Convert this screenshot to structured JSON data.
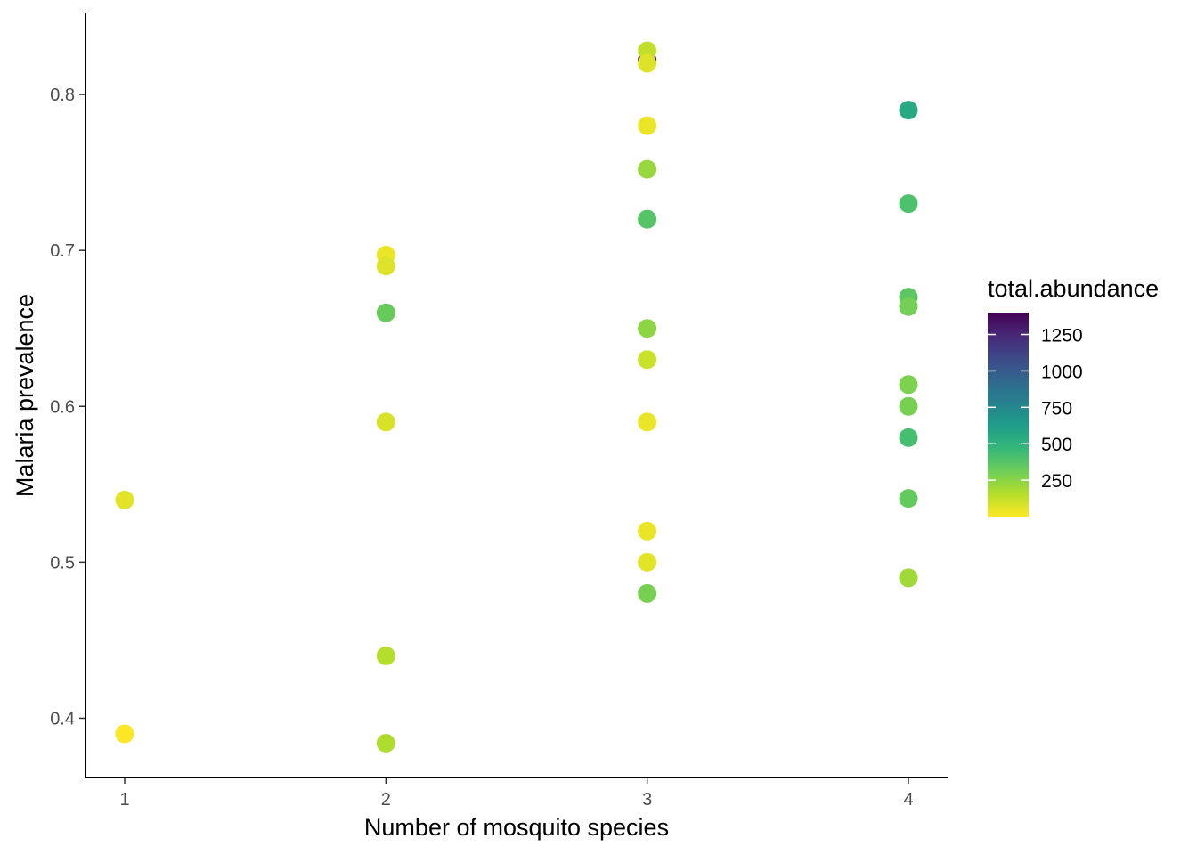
{
  "chart_data": {
    "type": "scatter",
    "xlabel": "Number of mosquito species",
    "ylabel": "Malaria prevalence",
    "xlim": [
      0.85,
      4.15
    ],
    "ylim": [
      0.362,
      0.852
    ],
    "x_ticks": [
      1,
      2,
      3,
      4
    ],
    "x_tick_labels": [
      "1",
      "2",
      "3",
      "4"
    ],
    "y_ticks": [
      0.4,
      0.5,
      0.6,
      0.7,
      0.8
    ],
    "y_tick_labels": [
      "0.4",
      "0.5",
      "0.6",
      "0.7",
      "0.8"
    ],
    "grid": false,
    "legend": {
      "title": "total.abundance",
      "placement": "right",
      "type": "colorbar",
      "range": [
        0,
        1400
      ],
      "breaks": [
        250,
        500,
        750,
        1000,
        1250
      ],
      "break_labels": [
        "250",
        "500",
        "750",
        "1000",
        "1250"
      ],
      "palette": [
        "#FDE725",
        "#B5DE2B",
        "#6ECE58",
        "#35B779",
        "#1F9E89",
        "#26828E",
        "#31688E",
        "#3E4989",
        "#482878",
        "#440154"
      ]
    },
    "points": [
      {
        "x": 1,
        "y": 0.54,
        "abundance": 60
      },
      {
        "x": 1,
        "y": 0.39,
        "abundance": 5
      },
      {
        "x": 2,
        "y": 0.697,
        "abundance": 40
      },
      {
        "x": 2,
        "y": 0.69,
        "abundance": 70
      },
      {
        "x": 2,
        "y": 0.66,
        "abundance": 330
      },
      {
        "x": 2,
        "y": 0.59,
        "abundance": 80
      },
      {
        "x": 2,
        "y": 0.44,
        "abundance": 160
      },
      {
        "x": 2,
        "y": 0.384,
        "abundance": 170
      },
      {
        "x": 3,
        "y": 0.822,
        "abundance": 1400
      },
      {
        "x": 3,
        "y": 0.828,
        "abundance": 130
      },
      {
        "x": 3,
        "y": 0.82,
        "abundance": 70
      },
      {
        "x": 3,
        "y": 0.78,
        "abundance": 40
      },
      {
        "x": 3,
        "y": 0.752,
        "abundance": 220
      },
      {
        "x": 3,
        "y": 0.72,
        "abundance": 380
      },
      {
        "x": 3,
        "y": 0.65,
        "abundance": 240
      },
      {
        "x": 3,
        "y": 0.63,
        "abundance": 110
      },
      {
        "x": 3,
        "y": 0.59,
        "abundance": 40
      },
      {
        "x": 3,
        "y": 0.52,
        "abundance": 40
      },
      {
        "x": 3,
        "y": 0.5,
        "abundance": 60
      },
      {
        "x": 3,
        "y": 0.48,
        "abundance": 290
      },
      {
        "x": 4,
        "y": 0.79,
        "abundance": 560
      },
      {
        "x": 4,
        "y": 0.73,
        "abundance": 400
      },
      {
        "x": 4,
        "y": 0.67,
        "abundance": 360
      },
      {
        "x": 4,
        "y": 0.664,
        "abundance": 300
      },
      {
        "x": 4,
        "y": 0.614,
        "abundance": 280
      },
      {
        "x": 4,
        "y": 0.6,
        "abundance": 290
      },
      {
        "x": 4,
        "y": 0.58,
        "abundance": 420
      },
      {
        "x": 4,
        "y": 0.541,
        "abundance": 340
      },
      {
        "x": 4,
        "y": 0.49,
        "abundance": 200
      }
    ]
  }
}
